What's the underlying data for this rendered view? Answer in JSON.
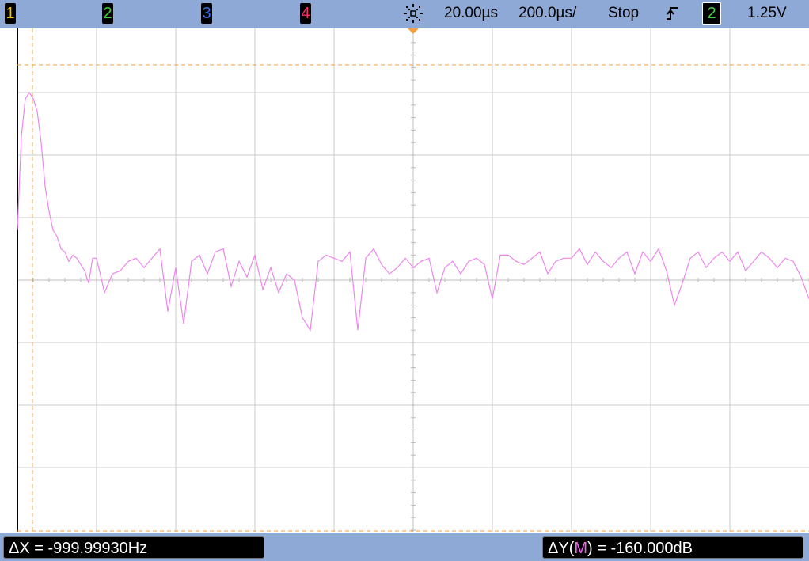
{
  "header": {
    "channels": [
      {
        "label": "1",
        "color": "#f5c400"
      },
      {
        "label": "2",
        "color": "#3cd43c"
      },
      {
        "label": "3",
        "color": "#3f6ff0"
      },
      {
        "label": "4",
        "color": "#ff2a6a"
      }
    ],
    "timebase_delay": "20.00µs",
    "timebase_scale": "200.0µs/",
    "run_state": "Stop",
    "trigger_channel": "2",
    "trigger_level": "1.25V",
    "trigger_icon": "rising-edge-trigger-icon",
    "acquisition_icon": "acquisition-activity-icon"
  },
  "colors": {
    "bar": "#8fa9d6",
    "grid": "#cccccc",
    "trace": "#ee86ee",
    "cursor": "#f0a040",
    "math_label": "#ee66ee"
  },
  "footer": {
    "delta_x": "ΔX = -999.99930Hz",
    "delta_y_prefix": "ΔY(",
    "delta_y_source": "M",
    "delta_y_suffix": ") = -160.000dB"
  },
  "chart_data": {
    "type": "line",
    "title": "",
    "xlabel": "",
    "ylabel": "",
    "grid": true,
    "x_divisions": 10,
    "y_divisions": 8,
    "xlim": [
      0,
      10
    ],
    "ylim": [
      -4,
      4
    ],
    "series": [
      {
        "x": [
          0,
          0.05,
          0.1,
          0.15,
          0.2,
          0.25,
          0.3,
          0.35,
          0.4,
          0.45,
          0.5,
          0.55,
          0.6,
          0.65,
          0.7,
          0.75,
          0.8,
          0.85,
          0.9,
          0.95,
          1.0,
          1.1,
          1.2,
          1.3,
          1.4,
          1.5,
          1.6,
          1.7,
          1.8,
          1.9,
          2.0,
          2.1,
          2.2,
          2.3,
          2.4,
          2.5,
          2.6,
          2.7,
          2.8,
          2.9,
          3.0,
          3.1,
          3.2,
          3.3,
          3.4,
          3.5,
          3.6,
          3.7,
          3.8,
          3.9,
          4.0,
          4.1,
          4.2,
          4.3,
          4.4,
          4.5,
          4.6,
          4.7,
          4.8,
          4.9,
          5.0,
          5.1,
          5.2,
          5.3,
          5.4,
          5.5,
          5.6,
          5.7,
          5.8,
          5.9,
          6.0,
          6.1,
          6.2,
          6.3,
          6.4,
          6.5,
          6.6,
          6.7,
          6.8,
          6.9,
          7.0,
          7.1,
          7.2,
          7.3,
          7.4,
          7.5,
          7.6,
          7.7,
          7.8,
          7.9,
          8.0,
          8.1,
          8.2,
          8.3,
          8.4,
          8.5,
          8.6,
          8.7,
          8.8,
          8.9,
          9.0,
          9.1,
          9.2,
          9.3,
          9.4,
          9.5,
          9.6,
          9.7,
          9.8,
          9.9,
          10.0
        ],
        "y": [
          0.8,
          2.3,
          2.9,
          3.0,
          2.9,
          2.7,
          2.2,
          1.5,
          1.1,
          0.8,
          0.7,
          0.5,
          0.45,
          0.3,
          0.4,
          0.35,
          0.25,
          0.15,
          -0.05,
          0.35,
          0.35,
          -0.2,
          0.1,
          0.15,
          0.3,
          0.35,
          0.2,
          0.35,
          0.5,
          -0.5,
          0.2,
          -0.7,
          0.3,
          0.4,
          0.1,
          0.45,
          0.5,
          -0.1,
          0.3,
          0.05,
          0.4,
          -0.15,
          0.2,
          -0.2,
          0.1,
          0.0,
          -0.6,
          -0.8,
          0.3,
          0.4,
          0.35,
          0.3,
          0.45,
          -0.8,
          0.35,
          0.5,
          0.25,
          0.1,
          0.2,
          0.35,
          0.2,
          0.3,
          0.35,
          -0.2,
          0.2,
          0.3,
          0.1,
          0.3,
          0.35,
          0.25,
          -0.3,
          0.4,
          0.4,
          0.3,
          0.25,
          0.35,
          0.45,
          0.1,
          0.3,
          0.35,
          0.35,
          0.5,
          0.25,
          0.45,
          0.3,
          0.2,
          0.35,
          0.45,
          0.1,
          0.45,
          0.3,
          0.5,
          0.15,
          -0.4,
          -0.05,
          0.35,
          0.45,
          0.2,
          0.35,
          0.45,
          0.3,
          0.45,
          0.15,
          0.3,
          0.45,
          0.35,
          0.2,
          0.35,
          0.3,
          0.05,
          -0.3
        ]
      }
    ]
  }
}
